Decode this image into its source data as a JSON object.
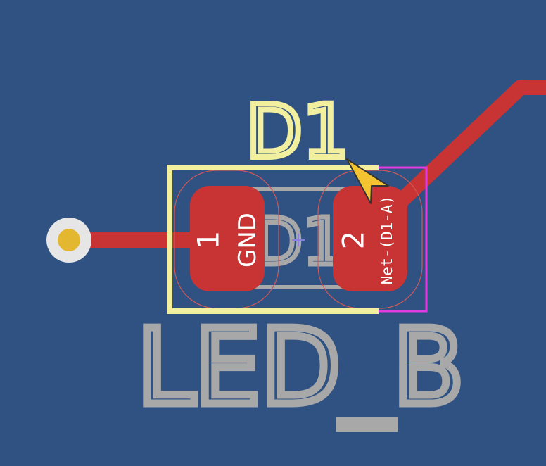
{
  "footprint": {
    "reference": "D1",
    "fab_reference": "D1",
    "value": "LED_B"
  },
  "pads": [
    {
      "number": "1",
      "net": "GND"
    },
    {
      "number": "2",
      "net": "Net-(D1-A)"
    }
  ],
  "colors": {
    "background": "#2f5283",
    "silkscreen": "#f2ef9f",
    "fab_text": "#a8a8a8",
    "pad": "#c83434",
    "pad_text": "#ffffff",
    "trace": "#c83434",
    "via_ring": "#e6e6e6",
    "via_hole": "#e3b72f",
    "courtyard_highlight": "#e03ce0",
    "clearance_outline": "#d15858",
    "anchor": "#8f7fe0",
    "cursor": "#f4c430"
  },
  "cursor": {
    "icon": "cursor-arrow-icon"
  }
}
